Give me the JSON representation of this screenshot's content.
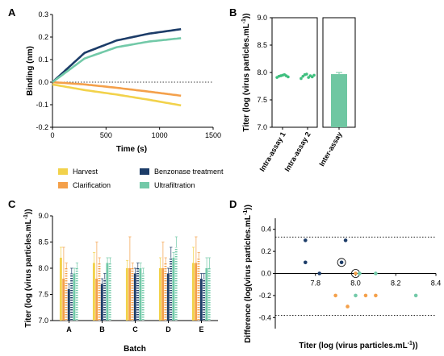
{
  "colors": {
    "harvest": "#f2d24b",
    "benzonase": "#1c3c68",
    "clarification": "#f4a04a",
    "ultrafiltration": "#72c9a8",
    "green_point": "#3fbf7f",
    "bar_green": "#6fc7a2"
  },
  "chart_data": [
    {
      "panel": "A",
      "type": "line",
      "xlabel": "Time (s)",
      "ylabel": "Binding (nm)",
      "xlim": [
        0,
        1500
      ],
      "ylim": [
        -0.2,
        0.3
      ],
      "xticks": [
        "0",
        "500",
        "1000",
        "1500"
      ],
      "yticks": [
        "-0.2",
        "-0.1",
        "0.0",
        "0.1",
        "0.2",
        "0.3"
      ],
      "reference_line_y": 0,
      "series": [
        {
          "name": "Harvest",
          "x": [
            0,
            300,
            600,
            900,
            1200
          ],
          "y": [
            -0.01,
            -0.035,
            -0.055,
            -0.078,
            -0.103
          ]
        },
        {
          "name": "Benzonase treatment",
          "x": [
            0,
            300,
            600,
            900,
            1200
          ],
          "y": [
            0,
            0.13,
            0.185,
            0.215,
            0.235
          ]
        },
        {
          "name": "Clarification",
          "x": [
            0,
            300,
            600,
            900,
            1200
          ],
          "y": [
            0,
            -0.01,
            -0.025,
            -0.042,
            -0.06
          ]
        },
        {
          "name": "Ultrafiltration",
          "x": [
            0,
            300,
            600,
            900,
            1200
          ],
          "y": [
            0,
            0.105,
            0.155,
            0.18,
            0.195
          ]
        }
      ]
    },
    {
      "panel": "B",
      "type": "scatter",
      "ylabel": "Titer (log (virus particles.mL",
      "ylabel_sup": "-1",
      "ylabel_end": "))",
      "ylim": [
        7.0,
        9.0
      ],
      "yticks": [
        "7.0",
        "7.5",
        "8.0",
        "8.5",
        "9.0"
      ],
      "categories": [
        "Intra-assay 1",
        "Intra-assay 2",
        "Inter-assay"
      ],
      "points": [
        {
          "category": "Intra-assay 1",
          "values": [
            7.91,
            7.93,
            7.94,
            7.95,
            7.96,
            7.94,
            7.92
          ]
        },
        {
          "category": "Intra-assay 2",
          "values": [
            7.89,
            7.93,
            7.96,
            7.97,
            7.91,
            7.94,
            7.92,
            7.95
          ]
        }
      ],
      "bars": [
        {
          "category": "Inter-assay",
          "value": 7.97,
          "error": 0.03
        }
      ]
    },
    {
      "panel": "C",
      "type": "bar",
      "xlabel": "Batch",
      "ylabel": "Titer (log (virus particles.mL",
      "ylabel_sup": "-1",
      "ylabel_end": "))",
      "ylim": [
        7.0,
        9.0
      ],
      "yticks": [
        "7.0",
        "7.5",
        "8.0",
        "8.5",
        "9.0"
      ],
      "categories": [
        "A",
        "B",
        "C",
        "D",
        "E"
      ],
      "series": [
        {
          "name": "Harvest",
          "pattern": "solid",
          "values": [
            8.2,
            8.1,
            8.0,
            8.0,
            8.1
          ],
          "errors": [
            0.2,
            0.2,
            0.15,
            0.2,
            0.3
          ]
        },
        {
          "name": "Clarification",
          "pattern": "solid",
          "values": [
            7.8,
            7.8,
            8.0,
            8.0,
            8.1
          ],
          "errors": [
            0.6,
            0.7,
            0.6,
            0.5,
            0.5
          ]
        },
        {
          "name": "Clarification",
          "pattern": "hatched",
          "values": [
            8.0,
            8.1,
            8.0,
            8.1,
            8.2
          ],
          "errors": [
            0.1,
            0.1,
            0.1,
            0.1,
            0.1
          ]
        },
        {
          "name": "Benzonase treatment",
          "pattern": "solid",
          "values": [
            7.6,
            7.7,
            7.9,
            7.9,
            7.8
          ],
          "errors": [
            0.1,
            0.1,
            0.1,
            0.1,
            0.1
          ]
        },
        {
          "name": "Benzonase treatment",
          "pattern": "hatched",
          "values": [
            7.9,
            7.8,
            8.0,
            8.2,
            7.8
          ],
          "errors": [
            0.1,
            0.1,
            0.1,
            0.2,
            0.1
          ]
        },
        {
          "name": "Ultrafiltration",
          "pattern": "solid",
          "values": [
            7.9,
            8.1,
            8.0,
            8.2,
            8.0
          ],
          "errors": [
            0.1,
            0.1,
            0.1,
            0.1,
            0.2
          ]
        },
        {
          "name": "Ultrafiltration",
          "pattern": "hatched",
          "values": [
            8.0,
            8.1,
            7.9,
            8.4,
            8.0
          ],
          "errors": [
            0.1,
            0.1,
            0.1,
            0.2,
            0.2
          ]
        }
      ]
    },
    {
      "panel": "D",
      "type": "scatter",
      "xlabel": "Titer (log (virus particles.mL",
      "xlabel_sup": "-1",
      "xlabel_end": "))",
      "ylabel": "Difference (log(virus particles.mL",
      "ylabel_sup": "-1",
      "ylabel_end": "))",
      "xlim": [
        7.6,
        8.4
      ],
      "ylim": [
        -0.5,
        0.5
      ],
      "xticks": [
        "7.8",
        "8.0",
        "8.2",
        "8.4"
      ],
      "yticks": [
        "-0.4",
        "-0.2",
        "0.0",
        "0.2",
        "0.4"
      ],
      "reference_lines_y": [
        0.0,
        0.33,
        -0.38
      ],
      "points": [
        {
          "series": "Benzonase treatment",
          "x": 7.75,
          "y": 0.3
        },
        {
          "series": "Benzonase treatment",
          "x": 7.75,
          "y": 0.1
        },
        {
          "series": "Benzonase treatment",
          "x": 7.93,
          "y": 0.1,
          "circled": true
        },
        {
          "series": "Benzonase treatment",
          "x": 7.95,
          "y": 0.3
        },
        {
          "series": "Benzonase treatment",
          "x": 7.82,
          "y": 0.0
        },
        {
          "series": "Clarification",
          "x": 7.9,
          "y": -0.2
        },
        {
          "series": "Clarification",
          "x": 7.96,
          "y": -0.3
        },
        {
          "series": "Clarification",
          "x": 8.0,
          "y": 0.0,
          "circled": true
        },
        {
          "series": "Clarification",
          "x": 8.05,
          "y": -0.2
        },
        {
          "series": "Clarification",
          "x": 8.1,
          "y": -0.2
        },
        {
          "series": "Ultrafiltration",
          "x": 8.0,
          "y": -0.2
        },
        {
          "series": "Ultrafiltration",
          "x": 8.3,
          "y": -0.2
        },
        {
          "series": "Ultrafiltration",
          "x": 8.1,
          "y": 0.0
        },
        {
          "series": "Ultrafiltration",
          "x": 8.02,
          "y": 0.0
        }
      ]
    }
  ],
  "panels": {
    "a": "A",
    "b": "B",
    "c": "C",
    "d": "D"
  },
  "legend": {
    "harvest": "Harvest",
    "benzonase": "Benzonase treatment",
    "clarification": "Clarification",
    "ultrafiltration": "Ultrafiltration"
  }
}
